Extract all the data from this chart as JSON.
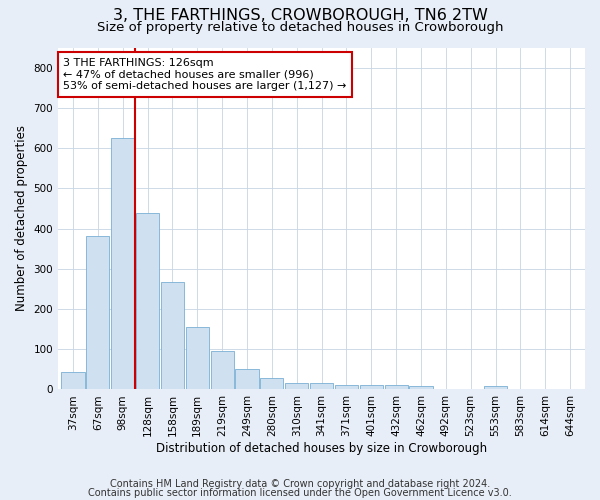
{
  "title": "3, THE FARTHINGS, CROWBOROUGH, TN6 2TW",
  "subtitle": "Size of property relative to detached houses in Crowborough",
  "xlabel": "Distribution of detached houses by size in Crowborough",
  "ylabel": "Number of detached properties",
  "categories": [
    "37sqm",
    "67sqm",
    "98sqm",
    "128sqm",
    "158sqm",
    "189sqm",
    "219sqm",
    "249sqm",
    "280sqm",
    "310sqm",
    "341sqm",
    "371sqm",
    "401sqm",
    "432sqm",
    "462sqm",
    "492sqm",
    "523sqm",
    "553sqm",
    "583sqm",
    "614sqm",
    "644sqm"
  ],
  "values": [
    44,
    382,
    625,
    438,
    268,
    155,
    95,
    52,
    28,
    16,
    16,
    10,
    10,
    10,
    9,
    0,
    0,
    8,
    0,
    0,
    0
  ],
  "bar_color": "#cfe0f0",
  "bar_edge_color": "#7aafd4",
  "annotation_text": "3 THE FARTHINGS: 126sqm\n← 47% of detached houses are smaller (996)\n53% of semi-detached houses are larger (1,127) →",
  "annotation_box_color": "#ffffff",
  "annotation_box_edge": "#cc0000",
  "vline_color": "#cc0000",
  "ylim": [
    0,
    850
  ],
  "yticks": [
    0,
    100,
    200,
    300,
    400,
    500,
    600,
    700,
    800
  ],
  "footer1": "Contains HM Land Registry data © Crown copyright and database right 2024.",
  "footer2": "Contains public sector information licensed under the Open Government Licence v3.0.",
  "background_color": "#e8eef7",
  "plot_bg_color": "#ffffff",
  "grid_color": "#c8d4e4",
  "title_fontsize": 11.5,
  "subtitle_fontsize": 9.5,
  "axis_label_fontsize": 8.5,
  "tick_fontsize": 7.5,
  "annotation_fontsize": 8,
  "footer_fontsize": 7
}
